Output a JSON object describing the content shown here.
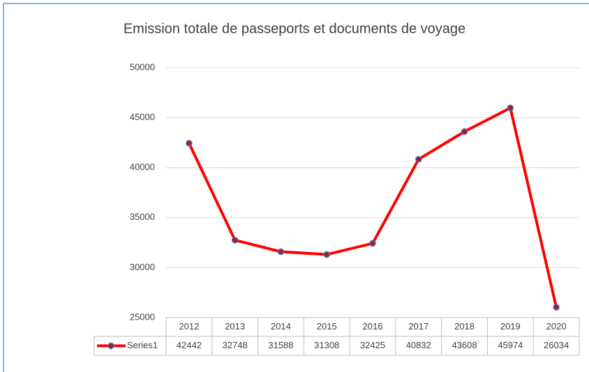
{
  "chart_data": {
    "type": "line",
    "title": "Emission totale de passeports et documents de voyage",
    "categories": [
      "2012",
      "2013",
      "2014",
      "2015",
      "2016",
      "2017",
      "2018",
      "2019",
      "2020"
    ],
    "series": [
      {
        "name": "Series1",
        "color": "#ff0000",
        "marker_color": "#9b1c3c",
        "marker_edge": "#5a6ea8",
        "values": [
          42442,
          32748,
          31588,
          31308,
          32425,
          40832,
          43608,
          45974,
          26034
        ]
      }
    ],
    "ylim": [
      25000,
      50000
    ],
    "yticks": [
      25000,
      30000,
      35000,
      40000,
      45000,
      50000
    ],
    "grid": true,
    "data_table": true
  }
}
